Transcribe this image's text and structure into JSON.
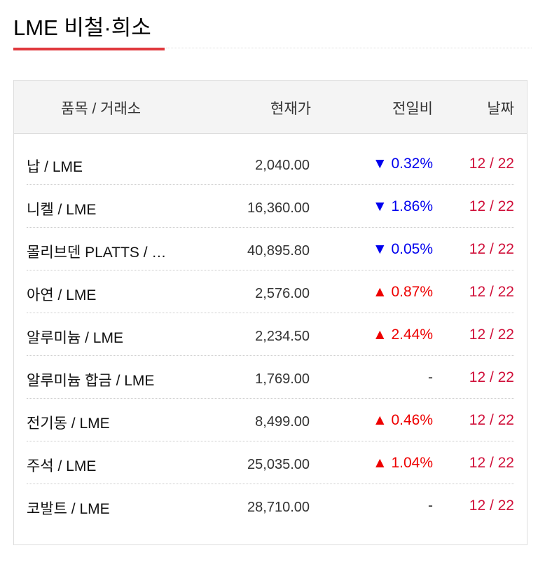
{
  "title": "LME 비철·희소",
  "header": {
    "name": "품목 / 거래소",
    "price": "현재가",
    "change": "전일비",
    "date": "날짜"
  },
  "colors": {
    "accent": "#e0393e",
    "down": "#0000ee",
    "up": "#ee0000",
    "date": "#d0103a"
  },
  "rows": [
    {
      "name": "납 / LME",
      "price": "2,040.00",
      "change": "▼ 0.32%",
      "dir": "down",
      "date": "12 / 22"
    },
    {
      "name": "니켈 / LME",
      "price": "16,360.00",
      "change": "▼ 1.86%",
      "dir": "down",
      "date": "12 / 22"
    },
    {
      "name": "몰리브덴 PLATTS / …",
      "price": "40,895.80",
      "change": "▼ 0.05%",
      "dir": "down",
      "date": "12 / 22"
    },
    {
      "name": "아연 / LME",
      "price": "2,576.00",
      "change": "▲ 0.87%",
      "dir": "up",
      "date": "12 / 22"
    },
    {
      "name": "알루미늄 / LME",
      "price": "2,234.50",
      "change": "▲ 2.44%",
      "dir": "up",
      "date": "12 / 22"
    },
    {
      "name": "알루미늄 합금 / LME",
      "price": "1,769.00",
      "change": "-",
      "dir": "flat",
      "date": "12 / 22"
    },
    {
      "name": "전기동 / LME",
      "price": "8,499.00",
      "change": "▲ 0.46%",
      "dir": "up",
      "date": "12 / 22"
    },
    {
      "name": "주석 / LME",
      "price": "25,035.00",
      "change": "▲ 1.04%",
      "dir": "up",
      "date": "12 / 22"
    },
    {
      "name": "코발트 / LME",
      "price": "28,710.00",
      "change": "-",
      "dir": "flat",
      "date": "12 / 22"
    }
  ]
}
